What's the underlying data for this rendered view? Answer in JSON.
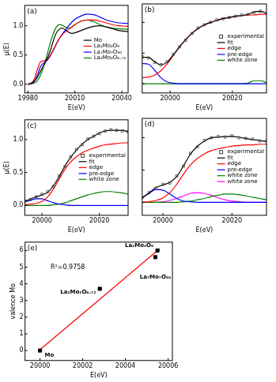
{
  "chart_data": [
    {
      "type": "line",
      "title": "(a)",
      "x_label": "E(eV)",
      "y_label": "μ(E)",
      "x": [
        19980,
        19982,
        19984,
        19986,
        19988,
        19990,
        19992,
        19994,
        19996,
        19998,
        20000,
        20002,
        20004,
        20006,
        20008,
        20010,
        20014,
        20018,
        20022,
        20026,
        20030,
        20034,
        20038,
        20044
      ],
      "series": [
        {
          "name": "Mo",
          "color": "#000000",
          "values": [
            0.0,
            0.01,
            0.05,
            0.12,
            0.22,
            0.32,
            0.42,
            0.55,
            0.72,
            0.87,
            0.94,
            0.96,
            0.93,
            0.89,
            0.87,
            0.88,
            0.92,
            0.96,
            0.99,
            1.0,
            0.98,
            0.95,
            0.92,
            0.9
          ]
        },
        {
          "name": "La₂Mo₂O₉",
          "color": "#ff0000",
          "values": [
            0.0,
            0.02,
            0.08,
            0.25,
            0.38,
            0.4,
            0.42,
            0.48,
            0.58,
            0.68,
            0.78,
            0.85,
            0.9,
            0.94,
            0.98,
            1.02,
            1.08,
            1.1,
            1.1,
            1.08,
            1.05,
            1.02,
            1.0,
            0.99
          ]
        },
        {
          "name": "La₇Mo₇O₃₀",
          "color": "#0000ff",
          "values": [
            0.0,
            0.01,
            0.04,
            0.15,
            0.3,
            0.36,
            0.4,
            0.47,
            0.57,
            0.68,
            0.78,
            0.86,
            0.93,
            1.0,
            1.06,
            1.11,
            1.17,
            1.2,
            1.19,
            1.15,
            1.1,
            1.07,
            1.05,
            1.04
          ]
        },
        {
          "name": "La₂Mo₂O₆.₇₂",
          "color": "#008000",
          "values": [
            0.0,
            0.01,
            0.02,
            0.06,
            0.15,
            0.3,
            0.48,
            0.68,
            0.85,
            0.97,
            1.02,
            1.01,
            0.98,
            0.96,
            0.98,
            1.02,
            1.08,
            1.1,
            1.07,
            1.02,
            0.98,
            0.96,
            0.95,
            0.94
          ]
        }
      ],
      "xlim": [
        19978,
        20044
      ],
      "xticks": [
        19980,
        20010,
        20040
      ],
      "ylim": [
        -0.15,
        1.35
      ],
      "yticks": [
        {
          "value": 0,
          "label": "0.0"
        },
        0.5,
        {
          "value": 1,
          "label": "1.0"
        }
      ],
      "grid": false,
      "legend": "center right"
    },
    {
      "type": "line",
      "title": "(b)",
      "x_label": "E(eV)",
      "x": [
        19991,
        19993,
        19995,
        19997,
        19999,
        20001,
        20003,
        20005,
        20007,
        20009,
        20011,
        20013,
        20015,
        20017,
        20019,
        20021,
        20023,
        20025,
        20027,
        20029,
        20031
      ],
      "series": [
        {
          "name": "experimental",
          "type": "scatter",
          "marker": "open_square",
          "color": "#404040",
          "values": [
            0.44,
            0.42,
            0.35,
            0.31,
            0.36,
            0.48,
            0.6,
            0.71,
            0.82,
            0.91,
            0.96,
            1.0,
            1.04,
            1.06,
            1.08,
            1.1,
            1.12,
            1.13,
            1.16,
            1.18,
            1.15
          ]
        },
        {
          "name": "fit",
          "color": "#000000",
          "values": [
            0.43,
            0.43,
            0.36,
            0.31,
            0.35,
            0.47,
            0.6,
            0.72,
            0.82,
            0.9,
            0.96,
            1.0,
            1.03,
            1.06,
            1.08,
            1.1,
            1.11,
            1.13,
            1.17,
            1.18,
            1.15
          ]
        },
        {
          "name": "edge",
          "color": "#ff0000",
          "values": [
            0.1,
            0.11,
            0.14,
            0.21,
            0.32,
            0.46,
            0.6,
            0.72,
            0.82,
            0.9,
            0.96,
            1.0,
            1.03,
            1.06,
            1.08,
            1.1,
            1.11,
            1.12,
            1.12,
            1.13,
            1.13
          ]
        },
        {
          "name": "pre-edge",
          "color": "#0000ff",
          "values": [
            0.33,
            0.32,
            0.22,
            0.1,
            0.03,
            0.01,
            0,
            0,
            0,
            0,
            0,
            0,
            0,
            0,
            0,
            0,
            0,
            0,
            0,
            0,
            0
          ]
        },
        {
          "name": "white zone",
          "color": "#008000",
          "values": [
            0,
            0,
            0,
            0,
            0,
            0,
            0,
            0,
            0,
            0,
            0,
            0,
            0,
            0,
            0,
            0,
            0,
            0.01,
            0.05,
            0.05,
            0.02
          ]
        }
      ],
      "xlim": [
        19991,
        20031
      ],
      "xticks": [
        20000,
        20020
      ],
      "ylim": [
        -0.15,
        1.3
      ],
      "yticks": [
        {
          "value": 0,
          "label": "0.0"
        },
        0.5,
        {
          "value": 1,
          "label": "1.0"
        }
      ],
      "tick_labels": "x",
      "grid": false,
      "legend": "center right"
    },
    {
      "type": "line",
      "title": "(c)",
      "x_label": "E(eV)",
      "y_label": "μ(E)",
      "x": [
        19994,
        19996,
        19998,
        20000,
        20002,
        20004,
        20006,
        20008,
        20010,
        20012,
        20014,
        20016,
        20018,
        20020,
        20022,
        20024,
        20026,
        20028,
        20030
      ],
      "series": [
        {
          "name": "experimental",
          "type": "scatter",
          "marker": "open_square",
          "color": "#404040",
          "values": [
            0.07,
            0.09,
            0.13,
            0.17,
            0.21,
            0.29,
            0.45,
            0.59,
            0.74,
            0.85,
            0.92,
            1.01,
            1.05,
            1.09,
            1.13,
            1.15,
            1.14,
            1.13,
            1.12
          ]
        },
        {
          "name": "fit",
          "color": "#000000",
          "values": [
            0.06,
            0.1,
            0.13,
            0.16,
            0.2,
            0.3,
            0.44,
            0.6,
            0.73,
            0.84,
            0.93,
            1.0,
            1.05,
            1.1,
            1.13,
            1.14,
            1.14,
            1.14,
            1.12
          ]
        },
        {
          "name": "edge",
          "color": "#ff0000",
          "values": [
            0.01,
            0.02,
            0.03,
            0.06,
            0.13,
            0.25,
            0.4,
            0.55,
            0.66,
            0.74,
            0.8,
            0.84,
            0.87,
            0.9,
            0.92,
            0.93,
            0.94,
            0.95,
            0.95
          ]
        },
        {
          "name": "pre-edge",
          "color": "#0000ff",
          "values": [
            0.05,
            0.08,
            0.1,
            0.1,
            0.07,
            0.04,
            0.02,
            0.01,
            0,
            0,
            0,
            0,
            0,
            0,
            0,
            0,
            0,
            0,
            0
          ]
        },
        {
          "name": "white zone",
          "color": "#008000",
          "values": [
            0,
            0,
            0,
            0,
            0,
            0.01,
            0.02,
            0.04,
            0.07,
            0.1,
            0.13,
            0.16,
            0.18,
            0.2,
            0.21,
            0.21,
            0.2,
            0.19,
            0.17
          ]
        }
      ],
      "xlim": [
        19994,
        20030
      ],
      "xticks": [
        20000,
        20020
      ],
      "ylim": [
        -0.15,
        1.3
      ],
      "yticks": [
        {
          "value": 0,
          "label": "0.0"
        },
        0.5,
        {
          "value": 1,
          "label": "1.0"
        }
      ],
      "grid": false,
      "legend": "center right"
    },
    {
      "type": "line",
      "title": "(d)",
      "x_label": "E(eV)",
      "x": [
        19994,
        19996,
        19998,
        20000,
        20002,
        20004,
        20006,
        20008,
        20010,
        20012,
        20014,
        20016,
        20018,
        20020,
        20022,
        20024,
        20026,
        20028,
        20030
      ],
      "series": [
        {
          "name": "experimental",
          "type": "scatter",
          "marker": "open_square",
          "color": "#404040",
          "values": [
            0.08,
            0.15,
            0.22,
            0.28,
            0.3,
            0.41,
            0.56,
            0.76,
            0.86,
            0.96,
            1.0,
            1.02,
            1.01,
            1.03,
            1.0,
            0.99,
            0.98,
            0.95,
            0.95
          ]
        },
        {
          "name": "fit",
          "color": "#000000",
          "values": [
            0.07,
            0.15,
            0.23,
            0.27,
            0.31,
            0.4,
            0.57,
            0.75,
            0.87,
            0.95,
            1.0,
            1.01,
            1.02,
            1.02,
            1.01,
            0.99,
            0.97,
            0.96,
            0.94
          ]
        },
        {
          "name": "edge",
          "color": "#ff0000",
          "values": [
            0,
            0.01,
            0.03,
            0.07,
            0.15,
            0.28,
            0.44,
            0.58,
            0.68,
            0.75,
            0.8,
            0.83,
            0.85,
            0.87,
            0.88,
            0.89,
            0.89,
            0.9,
            0.9
          ]
        },
        {
          "name": "pre-edge",
          "color": "#0000ff",
          "values": [
            0.07,
            0.14,
            0.2,
            0.19,
            0.13,
            0.06,
            0.02,
            0.01,
            0,
            0,
            0,
            0,
            0,
            0,
            0,
            0,
            0,
            0,
            0
          ]
        },
        {
          "name": "white zone",
          "color": "#008000",
          "values": [
            0,
            0,
            0,
            0,
            0,
            0,
            0.01,
            0.02,
            0.04,
            0.06,
            0.09,
            0.11,
            0.13,
            0.13,
            0.12,
            0.1,
            0.08,
            0.06,
            0.04
          ]
        },
        {
          "name": "white zone",
          "color": "#ff00ff",
          "values": [
            0,
            0,
            0,
            0.01,
            0.03,
            0.06,
            0.1,
            0.14,
            0.15,
            0.14,
            0.11,
            0.07,
            0.04,
            0.02,
            0.01,
            0,
            0,
            0,
            0
          ]
        }
      ],
      "xlim": [
        19994,
        20030
      ],
      "xticks": [
        20000,
        20020
      ],
      "ylim": [
        -0.2,
        1.3
      ],
      "yticks": [
        {
          "value": 0,
          "label": "0.0"
        },
        0.5,
        {
          "value": 1,
          "label": "1.0"
        }
      ],
      "tick_labels": "x",
      "grid": false,
      "legend": "center right"
    },
    {
      "type": "scatter",
      "title": "(e)",
      "x_label": "E(eV)",
      "y_label": "valence Mo",
      "series": [
        {
          "type": "scatter",
          "marker": "square",
          "color": "#000000",
          "x": [
            20000,
            20002.8,
            20005.4,
            20005.5
          ],
          "values": [
            0,
            3.7,
            5.6,
            6.0
          ],
          "labels": [
            "Mo",
            "La₂Mo₂O₆.₇₂",
            "La₇Mo₇O₃₀",
            "La₂Mo₂O₉"
          ]
        },
        {
          "type": "line",
          "color": "#ff0000",
          "x": [
            20000,
            20005.6
          ],
          "values": [
            0.05,
            6.1
          ]
        }
      ],
      "annotations": [
        {
          "text": "R²=0.9758",
          "x": 20001.3,
          "y": 5.0
        }
      ],
      "xlim": [
        19999.3,
        20006.2
      ],
      "xticks": [
        20000,
        20002,
        20004,
        20006
      ],
      "ylim": [
        -0.6,
        6.5
      ],
      "yticks": [
        0,
        1,
        2,
        3,
        4,
        5,
        6
      ],
      "grid": false
    }
  ]
}
